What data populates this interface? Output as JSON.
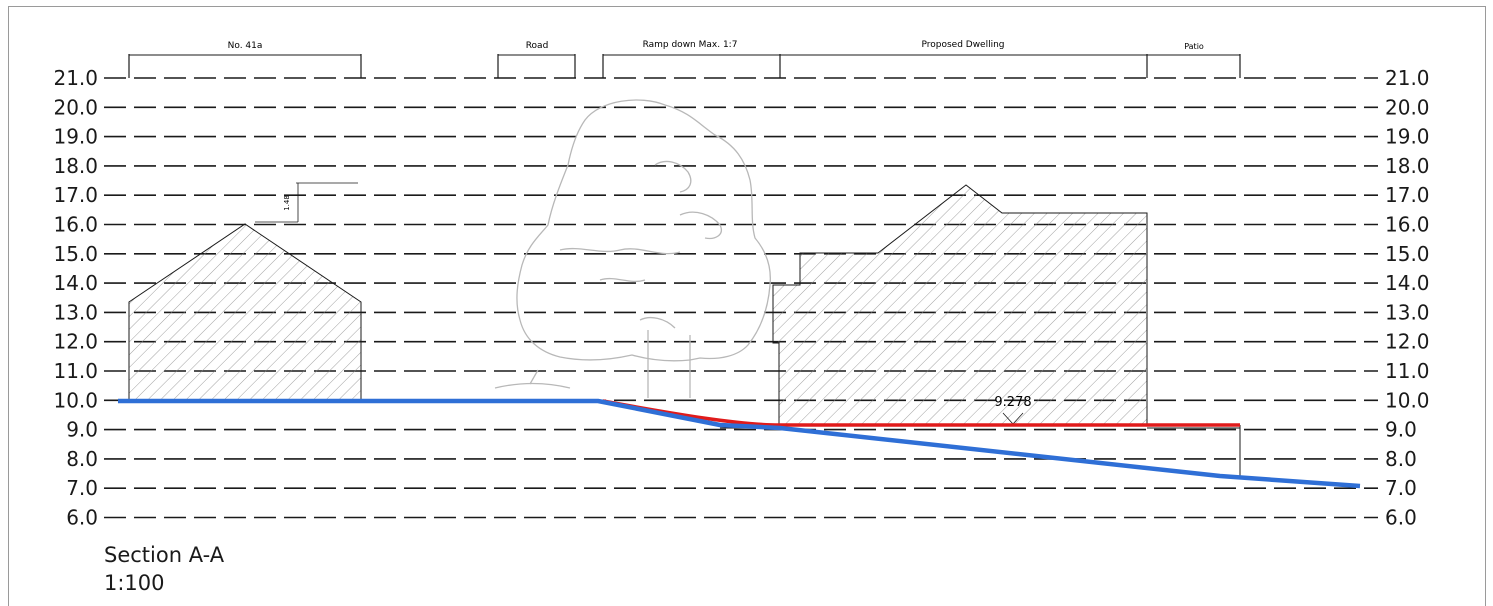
{
  "levels": [
    "21.0",
    "20.0",
    "19.0",
    "18.0",
    "17.0",
    "16.0",
    "15.0",
    "14.0",
    "13.0",
    "12.0",
    "11.0",
    "10.0",
    "9.0",
    "8.0",
    "7.0",
    "6.0"
  ],
  "zones": [
    {
      "label": "No. 41a"
    },
    {
      "label": "Road"
    },
    {
      "label": "Ramp down Max. 1:7"
    },
    {
      "label": "Proposed Dwelling"
    },
    {
      "label": "Patio"
    }
  ],
  "annotations": {
    "ridge_dimension": "1.48",
    "floor_level": "9.278"
  },
  "caption": {
    "title": "Section A-A",
    "scale": "1:100"
  },
  "colors": {
    "existing_ground": "#2f6fd6",
    "proposed_level": "#e01b1b",
    "linework": "#1a1a1a",
    "tree": "#b8b8b8"
  }
}
